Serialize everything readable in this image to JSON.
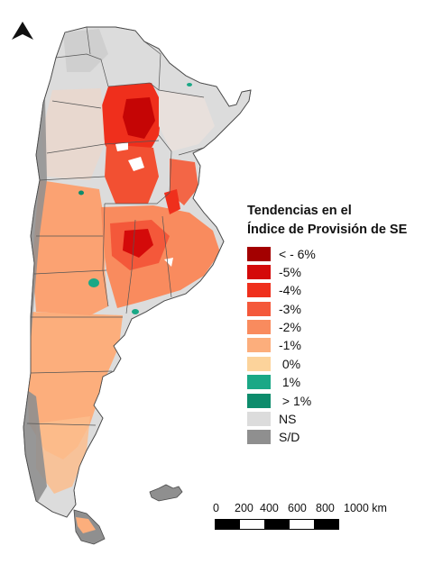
{
  "legend": {
    "title_line1": "Tendencias en el",
    "title_line2": "Índice de Provisión de SE",
    "items": [
      {
        "label": "< - 6%",
        "color": "#a30000"
      },
      {
        "label": "-5%",
        "color": "#d40a0a"
      },
      {
        "label": "-4%",
        "color": "#ef2f1c"
      },
      {
        "label": "-3%",
        "color": "#f4583a"
      },
      {
        "label": "-2%",
        "color": "#f98b5e"
      },
      {
        "label": "-1%",
        "color": "#fcae7c"
      },
      {
        "label": " 0%",
        "color": "#fcd39b"
      },
      {
        "label": " 1%",
        "color": "#1aa886"
      },
      {
        "label": " > 1%",
        "color": "#0d8c6c"
      },
      {
        "label": "NS",
        "color": "#dcdcdc"
      },
      {
        "label": "S/D",
        "color": "#8f8f8f"
      }
    ]
  },
  "scale_bar": {
    "labels": [
      "0",
      "200",
      "400",
      "600",
      "800",
      "1000 km"
    ]
  },
  "north_arrow": "north-arrow-icon"
}
